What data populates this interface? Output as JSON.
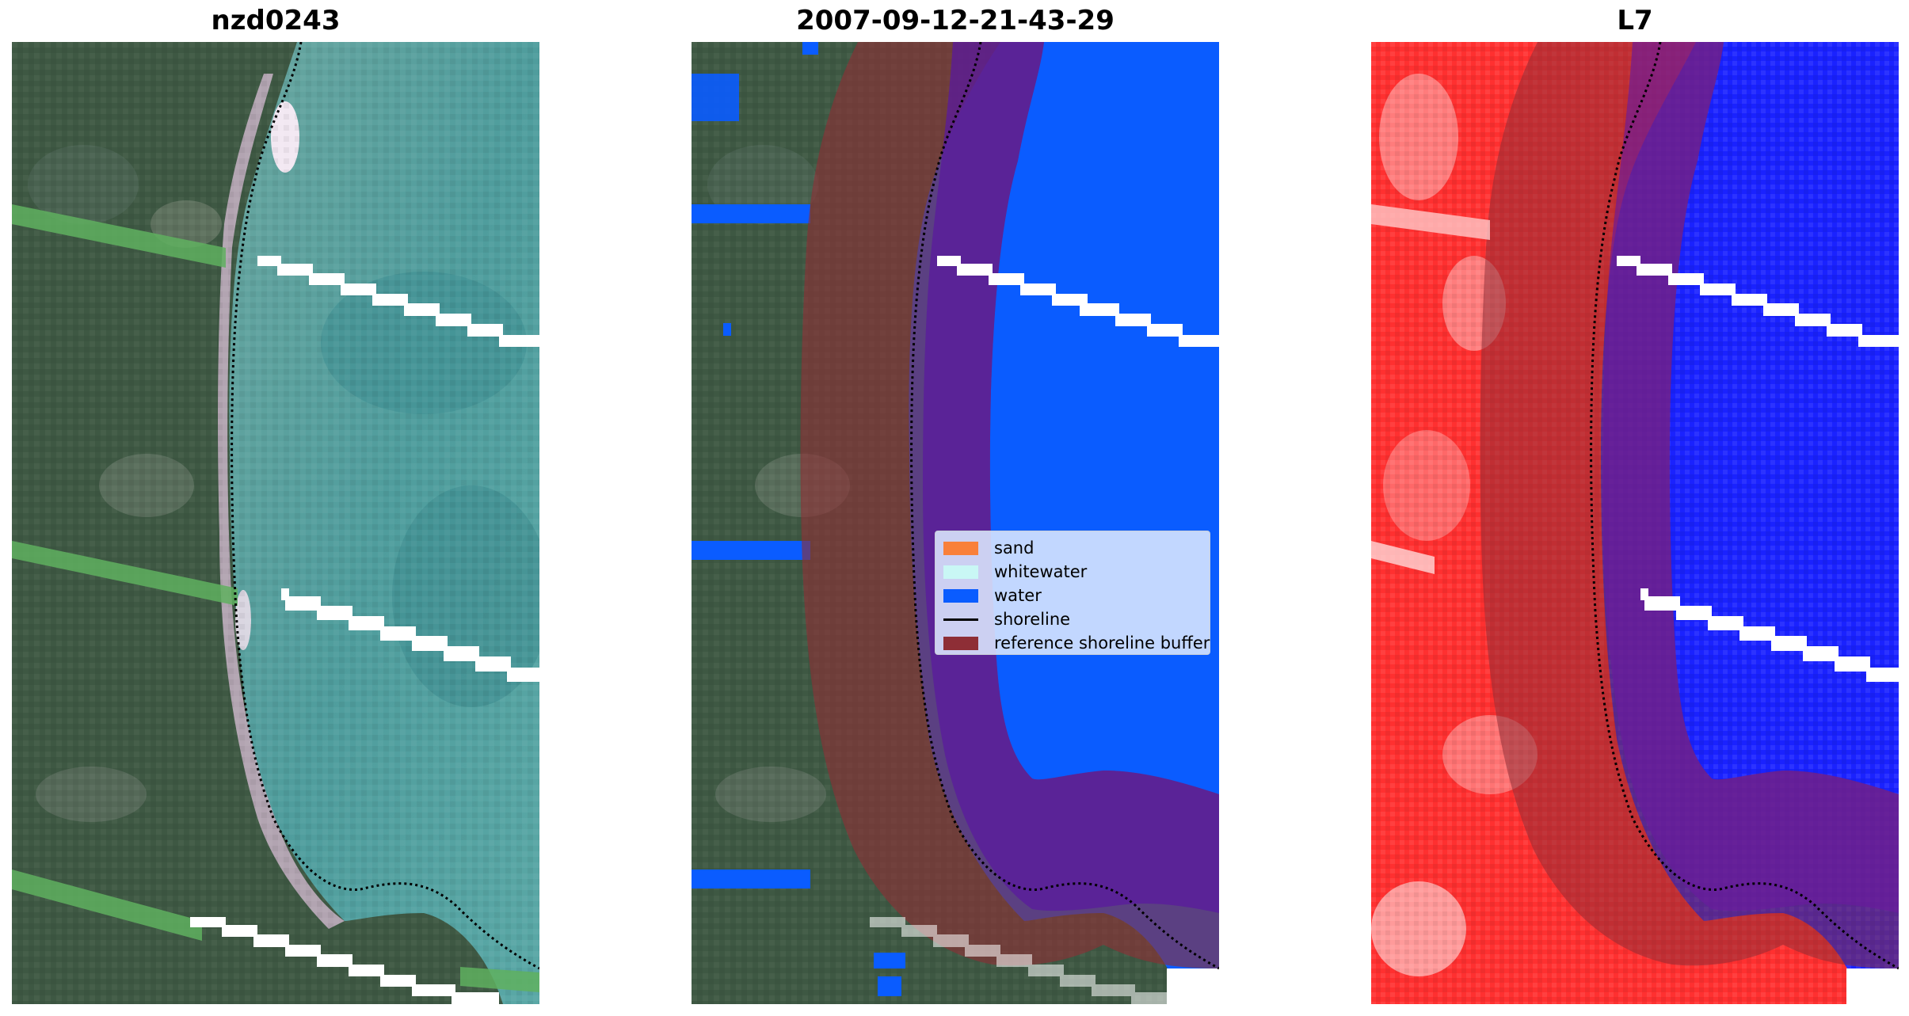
{
  "panels": [
    {
      "title": "nzd0243"
    },
    {
      "title": "2007-09-12-21-43-29"
    },
    {
      "title": "L7"
    }
  ],
  "legend": {
    "items": [
      {
        "label": "sand",
        "kind": "patch",
        "color": "#f9803a"
      },
      {
        "label": "whitewater",
        "kind": "patch",
        "color": "#c9f7f5"
      },
      {
        "label": "water",
        "kind": "patch",
        "color": "#0a5cff"
      },
      {
        "label": "shoreline",
        "kind": "line",
        "color": "#000000"
      },
      {
        "label": "reference shoreline buffer",
        "kind": "patch",
        "color": "#8e2e36"
      }
    ]
  },
  "colors": {
    "water_class": "#0a5cff",
    "buffer_overlay": "#8e2e36",
    "land_rgb": "#3f5a45",
    "water_rgb": "#4e9c9c",
    "index_land": "#ff2a2a",
    "index_water": "#1a22ff"
  }
}
